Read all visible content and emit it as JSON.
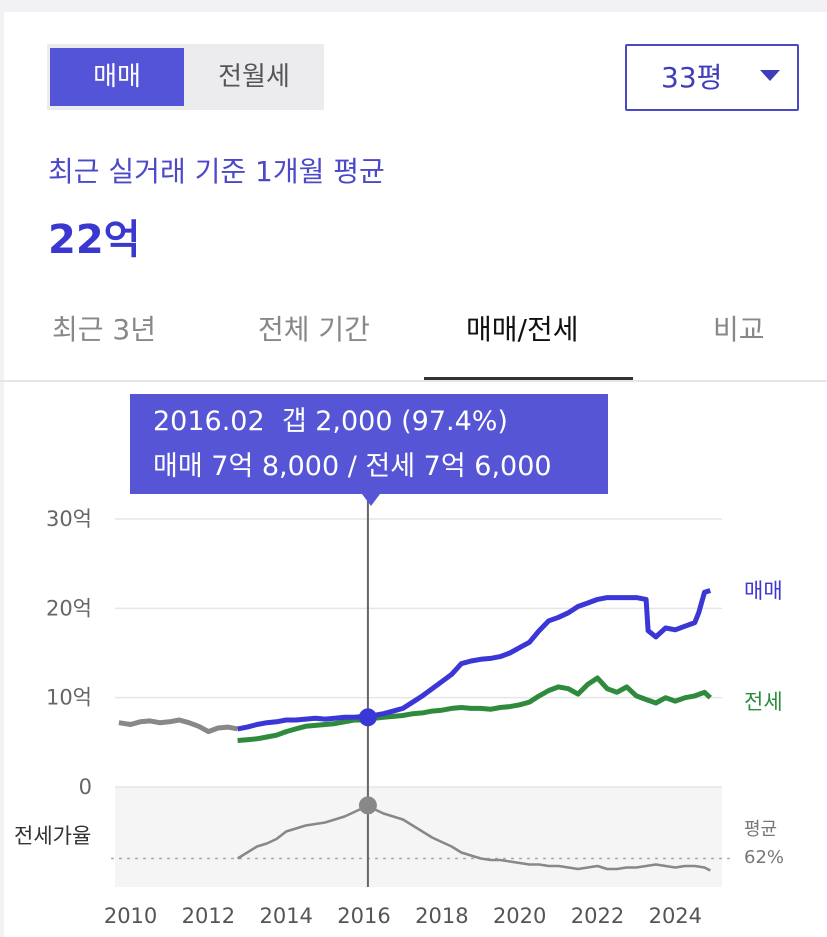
{
  "segment": {
    "options": [
      "매매",
      "전월세"
    ],
    "selected": 0
  },
  "area_select": {
    "value": "33평"
  },
  "summary": {
    "label": "최근 실거래 기준 1개월 평균",
    "price": "22억"
  },
  "tabs": [
    {
      "label": "최근 3년",
      "active": false
    },
    {
      "label": "전체 기간",
      "active": false
    },
    {
      "label": "매매/전세",
      "active": true
    },
    {
      "label": "비교",
      "active": false
    }
  ],
  "tooltip": {
    "line1": "2016.02  갭 2,000 (97.4%)",
    "line2": "매매 7억 8,000 / 전세 7억 6,000"
  },
  "chart_data": {
    "type": "line",
    "y_unit": "억",
    "ylim": [
      0,
      30
    ],
    "y_ticks": [
      "0",
      "10억",
      "20억",
      "30억"
    ],
    "x_ticks": [
      "2010",
      "2012",
      "2014",
      "2016",
      "2018",
      "2020",
      "2022",
      "2024"
    ],
    "xlim": [
      2009.6,
      2025.2
    ],
    "grid": true,
    "legend": "inline-right",
    "colors": {
      "sale": "#3b36d6",
      "jeonse": "#2e8b3e",
      "pre": "#888888",
      "ratio": "#888888",
      "tooltip": "#5555d6"
    },
    "series": [
      {
        "name": "매매",
        "x": [
          2012.75,
          2013.0,
          2013.25,
          2013.5,
          2013.75,
          2014.0,
          2014.25,
          2014.5,
          2014.75,
          2015.0,
          2015.25,
          2015.5,
          2015.75,
          2016.0,
          2016.1,
          2016.25,
          2016.5,
          2016.75,
          2017.0,
          2017.25,
          2017.5,
          2017.75,
          2018.0,
          2018.25,
          2018.5,
          2018.75,
          2019.0,
          2019.25,
          2019.5,
          2019.75,
          2020.0,
          2020.25,
          2020.5,
          2020.75,
          2021.0,
          2021.25,
          2021.5,
          2021.75,
          2022.0,
          2022.25,
          2022.5,
          2022.75,
          2023.0,
          2023.25,
          2023.3,
          2023.5,
          2023.75,
          2024.0,
          2024.25,
          2024.5,
          2024.6,
          2024.75,
          2024.9
        ],
        "values": [
          6.5,
          6.7,
          7.0,
          7.2,
          7.3,
          7.5,
          7.5,
          7.6,
          7.7,
          7.6,
          7.7,
          7.8,
          7.8,
          7.9,
          7.8,
          8.0,
          8.2,
          8.5,
          8.8,
          9.5,
          10.2,
          11.0,
          11.8,
          12.6,
          13.8,
          14.1,
          14.3,
          14.4,
          14.6,
          15.0,
          15.6,
          16.2,
          17.5,
          18.6,
          19.0,
          19.5,
          20.2,
          20.6,
          21.0,
          21.2,
          21.2,
          21.2,
          21.2,
          21.0,
          17.5,
          16.8,
          17.8,
          17.6,
          18.0,
          18.4,
          19.5,
          21.8,
          22.0
        ]
      },
      {
        "name": "전세",
        "x": [
          2012.75,
          2013.0,
          2013.25,
          2013.5,
          2013.75,
          2014.0,
          2014.25,
          2014.5,
          2014.75,
          2015.0,
          2015.25,
          2015.5,
          2015.75,
          2016.0,
          2016.1,
          2016.25,
          2016.5,
          2016.75,
          2017.0,
          2017.25,
          2017.5,
          2017.75,
          2018.0,
          2018.25,
          2018.5,
          2018.75,
          2019.0,
          2019.25,
          2019.5,
          2019.75,
          2020.0,
          2020.25,
          2020.5,
          2020.75,
          2021.0,
          2021.25,
          2021.5,
          2021.75,
          2022.0,
          2022.25,
          2022.5,
          2022.75,
          2023.0,
          2023.25,
          2023.5,
          2023.75,
          2024.0,
          2024.25,
          2024.5,
          2024.75,
          2024.9
        ],
        "values": [
          5.2,
          5.3,
          5.4,
          5.6,
          5.8,
          6.2,
          6.5,
          6.8,
          6.9,
          7.0,
          7.1,
          7.3,
          7.5,
          7.5,
          7.6,
          7.7,
          7.8,
          7.9,
          8.0,
          8.2,
          8.3,
          8.5,
          8.6,
          8.8,
          8.9,
          8.8,
          8.8,
          8.7,
          8.9,
          9.0,
          9.2,
          9.5,
          10.2,
          10.8,
          11.2,
          11.0,
          10.4,
          11.5,
          12.2,
          11.0,
          10.6,
          11.2,
          10.2,
          9.8,
          9.4,
          10.0,
          9.6,
          10.0,
          10.2,
          10.6,
          10.0
        ]
      },
      {
        "name": "",
        "x": [
          2009.7,
          2010.0,
          2010.25,
          2010.5,
          2010.75,
          2011.0,
          2011.25,
          2011.5,
          2011.75,
          2012.0,
          2012.25,
          2012.5,
          2012.75
        ],
        "values": [
          7.2,
          7.0,
          7.3,
          7.4,
          7.2,
          7.3,
          7.5,
          7.2,
          6.8,
          6.2,
          6.6,
          6.7,
          6.5
        ]
      }
    ],
    "ratio": {
      "label": "전세가율",
      "avg_label": "평균",
      "avg_value": "62%",
      "avg": 62,
      "x": [
        2012.75,
        2013.0,
        2013.25,
        2013.5,
        2013.75,
        2014.0,
        2014.25,
        2014.5,
        2014.75,
        2015.0,
        2015.25,
        2015.5,
        2015.75,
        2016.0,
        2016.1,
        2016.25,
        2016.5,
        2016.75,
        2017.0,
        2017.25,
        2017.5,
        2017.75,
        2018.0,
        2018.25,
        2018.5,
        2018.75,
        2019.0,
        2019.25,
        2019.5,
        2019.75,
        2020.0,
        2020.25,
        2020.5,
        2020.75,
        2021.0,
        2021.25,
        2021.5,
        2021.75,
        2022.0,
        2022.25,
        2022.5,
        2022.75,
        2023.0,
        2023.25,
        2023.5,
        2023.75,
        2024.0,
        2024.25,
        2024.5,
        2024.75,
        2024.9
      ],
      "values": [
        62,
        66,
        70,
        72,
        75,
        80,
        82,
        84,
        85,
        86,
        88,
        90,
        93,
        96,
        97.4,
        95,
        92,
        90,
        88,
        84,
        80,
        76,
        73,
        70,
        66,
        64,
        62,
        61,
        61,
        60,
        59,
        58,
        58,
        57,
        57,
        56,
        55,
        56,
        57,
        55,
        55,
        56,
        56,
        57,
        58,
        57,
        56,
        57,
        57,
        56,
        54
      ]
    },
    "highlight": {
      "x": 2016.1,
      "sale": 7.8,
      "jeonse": 7.6,
      "ratio": 97.4
    }
  }
}
